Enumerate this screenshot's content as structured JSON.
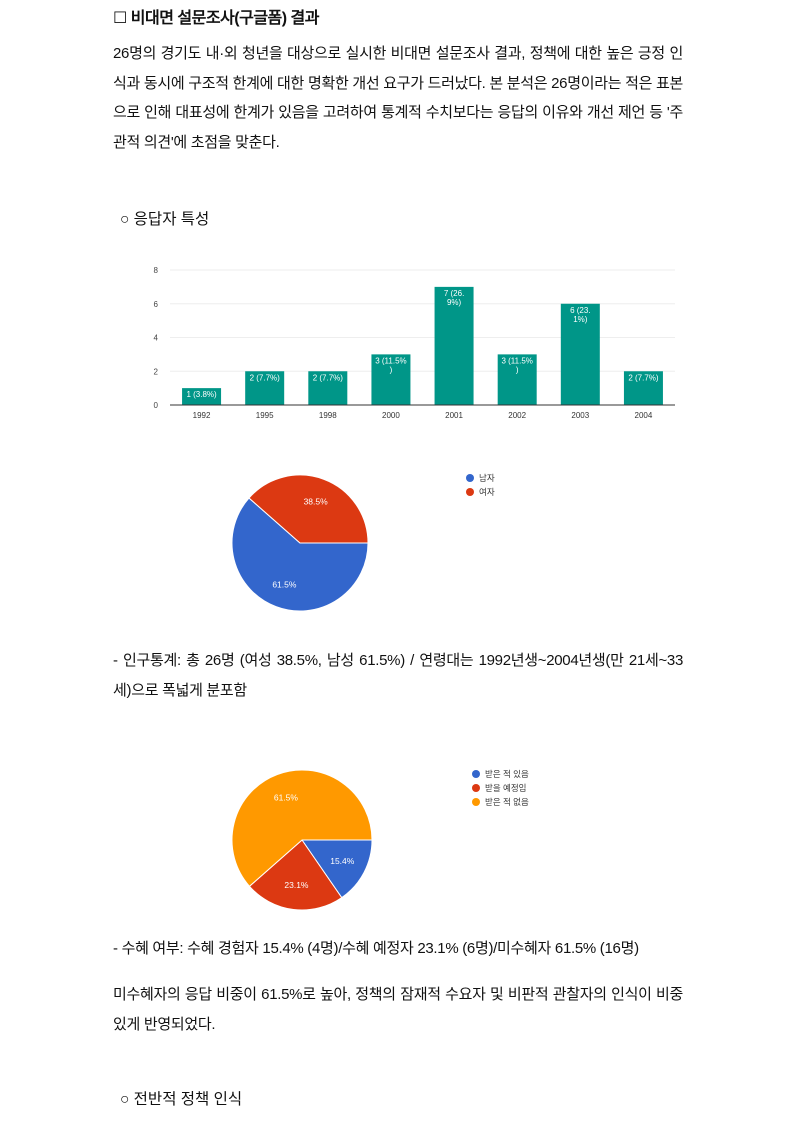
{
  "heading": "☐ 비대면 설문조사(구글폼) 결과",
  "intro": "26명의 경기도 내·외 청년을 대상으로 실시한 비대면 설문조사 결과, 정책에 대한 높은 긍정 인식과 동시에 구조적 한계에 대한 명확한 개선 요구가 드러났다. 본 분석은 26명이라는 적은 표본으로 인해 대표성에 한계가 있음을 고려하여 통계적 수치보다는 응답의 이유와 개선 제언 등 '주관적 의견'에 초점을 맞춘다.",
  "section1": "○ 응답자 특성",
  "demographics": " - 인구통계: 총 26명 (여성 38.5%, 남성 61.5%) / 연령대는 1992년생~2004년생(만 21세~33세)으로 폭넓게 분포함",
  "benefit_line": "- 수혜 여부: 수혜 경험자 15.4% (4명)/수혜 예정자 23.1% (6명)/미수혜자 61.5% (16명)",
  "benefit_para": "미수혜자의 응답 비중이 61.5%로 높아, 정책의 잠재적 수요자 및 비판적 관찰자의 인식이 비중 있게 반영되었다.",
  "section2": "○ 전반적 정책 인식",
  "chart_data": [
    {
      "type": "bar",
      "categories": [
        "1992",
        "1995",
        "1998",
        "2000",
        "2001",
        "2002",
        "2003",
        "2004"
      ],
      "values": [
        1,
        2,
        2,
        3,
        7,
        3,
        6,
        2
      ],
      "data_labels": [
        "1 (3.8%)",
        "2 (7.7%)",
        "2 (7.7%)",
        "3 (11.5%\n)",
        "7 (26.\n9%)",
        "3 (11.5%\n)",
        "6 (23.\n1%)",
        "2 (7.7%)"
      ],
      "ylim": [
        0,
        8
      ],
      "yticks": [
        0,
        2,
        4,
        6,
        8
      ],
      "grid": true,
      "color": "#009688"
    },
    {
      "type": "pie",
      "labels": [
        "남자",
        "여자"
      ],
      "values": [
        61.5,
        38.5
      ],
      "data_labels": [
        "61.5%",
        "38.5%"
      ],
      "colors": [
        "#3366cc",
        "#dc3912"
      ],
      "legend": "right"
    },
    {
      "type": "pie",
      "labels": [
        "받은 적 있음",
        "받을 예정임",
        "받은 적 없음"
      ],
      "values": [
        15.4,
        23.1,
        61.5
      ],
      "data_labels": [
        "15.4%",
        "23.1%",
        "61.5%"
      ],
      "colors": [
        "#3366cc",
        "#dc3912",
        "#ff9900"
      ],
      "legend": "right"
    }
  ]
}
